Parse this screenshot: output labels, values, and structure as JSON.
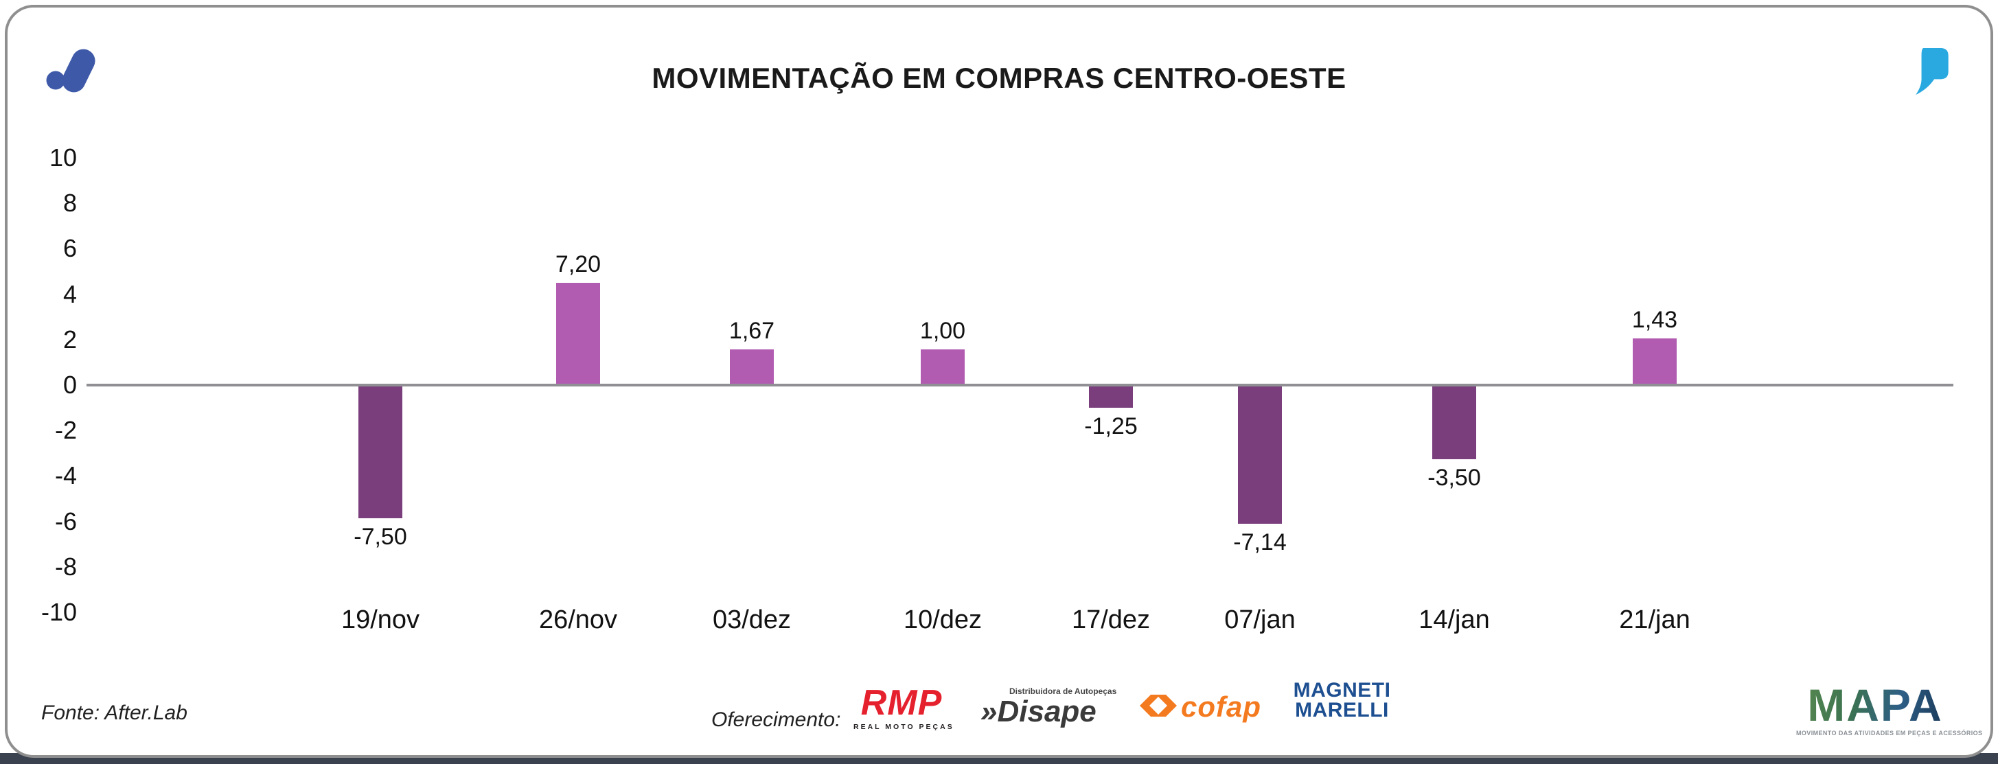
{
  "header": {
    "title": "MOVIMENTAÇÃO EM COMPRAS CENTRO-OESTE"
  },
  "chart_data": {
    "type": "bar",
    "title": "MOVIMENTAÇÃO EM COMPRAS CENTRO-OESTE",
    "categories": [
      "19/nov",
      "26/nov",
      "03/dez",
      "10/dez",
      "17/dez",
      "07/jan",
      "14/jan",
      "21/jan"
    ],
    "values": [
      -7.5,
      7.2,
      1.67,
      1.0,
      -1.25,
      -7.14,
      -3.5,
      1.43
    ],
    "value_labels": [
      "-7,50",
      "7,20",
      "1,67",
      "1,00",
      "-1,25",
      "-7,14",
      "-3,50",
      "1,43"
    ],
    "y_ticks": [
      10,
      8,
      6,
      4,
      2,
      0,
      -2,
      -4,
      -6,
      -8,
      -10
    ],
    "ylim": [
      -10,
      10
    ],
    "xlabel": "",
    "ylabel": "",
    "grid": false,
    "legend": null,
    "bar_colors": {
      "positive": "#b15cb1",
      "negative": "#7a3e7d"
    },
    "axis_line_color": "#909094"
  },
  "branding": {
    "logo_color": "#3e59a8",
    "quote_color": "#29a9e0"
  },
  "footer": {
    "source": "Fonte: After.Lab",
    "sponsor_label": "Oferecimento:",
    "sponsors": {
      "rmp": {
        "name": "RMP",
        "caption": "REAL MOTO PEÇAS"
      },
      "disape": {
        "prefix": "»",
        "name": "Disape",
        "caption": "Distribuidora de Autopeças"
      },
      "cofap": {
        "name": "cofap"
      },
      "marelli": {
        "line1": "MAGNETI",
        "line2": "MARELLI"
      },
      "mapa": {
        "name": "MAPA",
        "caption": "MOVIMENTO DAS ATIVIDADES EM PEÇAS E ACESSÓRIOS"
      }
    }
  }
}
